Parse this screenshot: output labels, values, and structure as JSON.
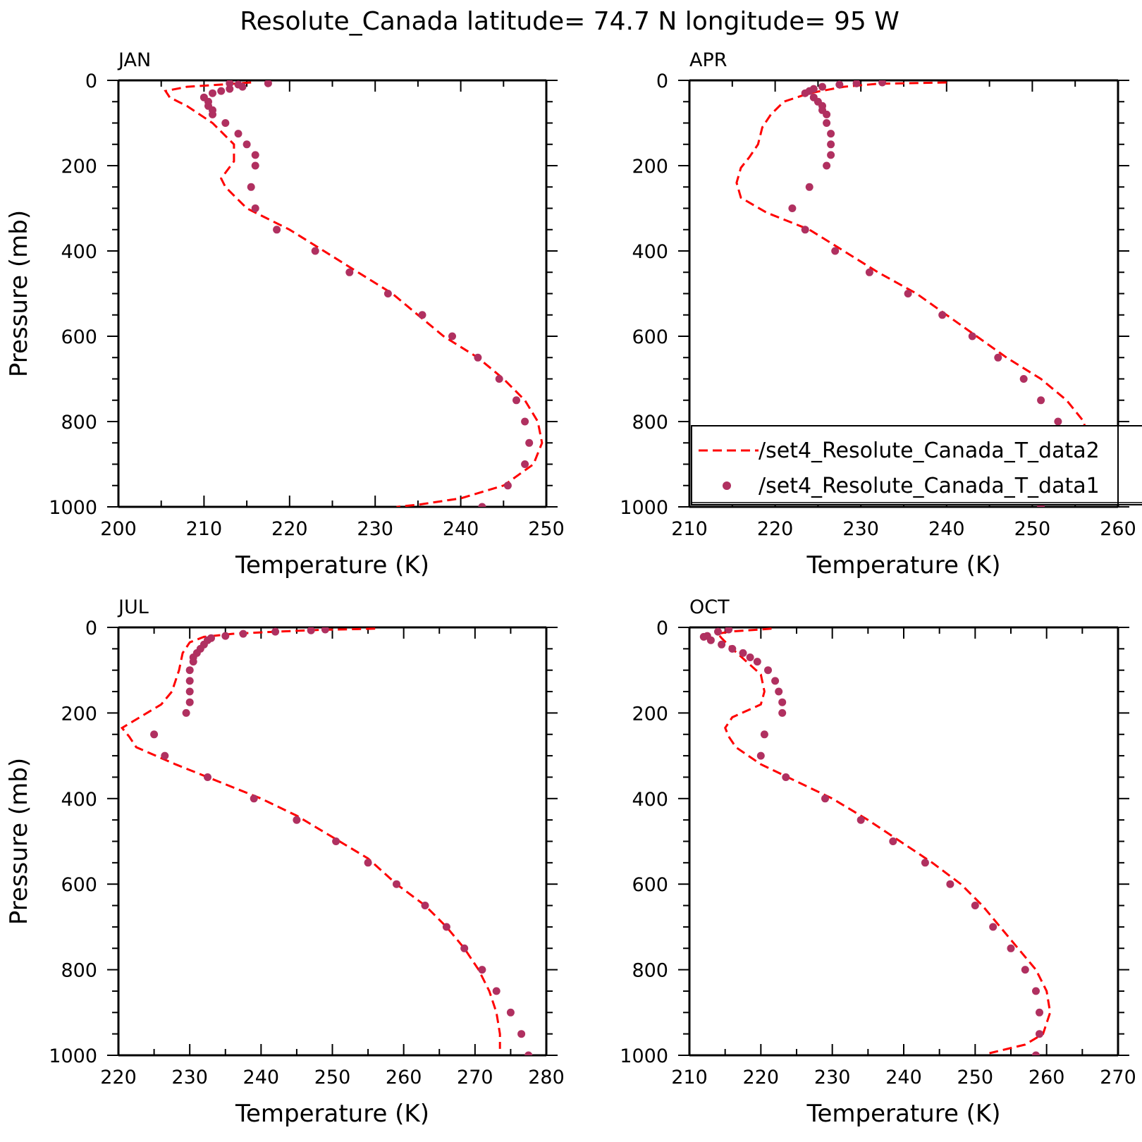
{
  "figure": {
    "title": "Resolute_Canada  latitude= 74.7 N longitude= 95 W"
  },
  "colors": {
    "model_line": "#ff0000",
    "obs_dots": "#b03060",
    "axes": "#000000"
  },
  "legend": {
    "panel": "APR",
    "entries": [
      {
        "label": "/set4_Resolute_Canada_T_data2",
        "style": "dashed-line",
        "color": "#ff0000"
      },
      {
        "label": "/set4_Resolute_Canada_T_data1",
        "style": "dots",
        "color": "#b03060"
      }
    ]
  },
  "chart_data": [
    {
      "type": "line",
      "label": "JAN",
      "xlabel": "Temperature (K)",
      "ylabel": "Pressure (mb)",
      "xlim": [
        200,
        250
      ],
      "ylim": [
        1000,
        0
      ],
      "xticks": [
        200,
        210,
        220,
        230,
        240,
        250
      ],
      "yticks": [
        0,
        200,
        400,
        600,
        800,
        1000
      ],
      "series": [
        {
          "name": "/set4_Resolute_Canada_T_data2",
          "style": "dashed",
          "points": [
            [
              215.5,
              5
            ],
            [
              212,
              10
            ],
            [
              208,
              15
            ],
            [
              205.5,
              25
            ],
            [
              206,
              40
            ],
            [
              208,
              60
            ],
            [
              211,
              100
            ],
            [
              213.5,
              150
            ],
            [
              213.5,
              190
            ],
            [
              212,
              230
            ],
            [
              212.5,
              250
            ],
            [
              213.5,
              270
            ],
            [
              215,
              300
            ],
            [
              220,
              350
            ],
            [
              224,
              400
            ],
            [
              228,
              450
            ],
            [
              232,
              500
            ],
            [
              235,
              550
            ],
            [
              238,
              600
            ],
            [
              242,
              650
            ],
            [
              245,
              700
            ],
            [
              247.5,
              750
            ],
            [
              249,
              800
            ],
            [
              249.5,
              850
            ],
            [
              248.5,
              900
            ],
            [
              245,
              950
            ],
            [
              240,
              980
            ],
            [
              235,
              995
            ],
            [
              232.5,
              1000
            ]
          ]
        },
        {
          "name": "/set4_Resolute_Canada_T_data1",
          "style": "dots",
          "points": [
            [
              217.5,
              7
            ],
            [
              213,
              7
            ],
            [
              214,
              10
            ],
            [
              214.5,
              15
            ],
            [
              213,
              20
            ],
            [
              212,
              25
            ],
            [
              211,
              30
            ],
            [
              210,
              40
            ],
            [
              210.5,
              50
            ],
            [
              210.5,
              60
            ],
            [
              211,
              70
            ],
            [
              211,
              80
            ],
            [
              212.5,
              100
            ],
            [
              214,
              125
            ],
            [
              215,
              150
            ],
            [
              216,
              175
            ],
            [
              216,
              200
            ],
            [
              215.5,
              250
            ],
            [
              216,
              300
            ],
            [
              218.5,
              350
            ],
            [
              223,
              400
            ],
            [
              227,
              450
            ],
            [
              231.5,
              500
            ],
            [
              235.5,
              550
            ],
            [
              239,
              600
            ],
            [
              242,
              650
            ],
            [
              244.5,
              700
            ],
            [
              246.5,
              750
            ],
            [
              247.5,
              800
            ],
            [
              248,
              850
            ],
            [
              247.5,
              900
            ],
            [
              245.5,
              950
            ],
            [
              242.5,
              1000
            ]
          ]
        }
      ]
    },
    {
      "type": "line",
      "label": "APR",
      "xlabel": "Temperature (K)",
      "ylabel": "",
      "xlim": [
        210,
        260
      ],
      "ylim": [
        1000,
        0
      ],
      "xticks": [
        210,
        220,
        230,
        240,
        250,
        260
      ],
      "yticks": [
        0,
        200,
        400,
        600,
        800,
        1000
      ],
      "series": [
        {
          "name": "/set4_Resolute_Canada_T_data2",
          "style": "dashed",
          "points": [
            [
              240,
              5
            ],
            [
              232,
              8
            ],
            [
              228,
              15
            ],
            [
              224,
              30
            ],
            [
              221,
              50
            ],
            [
              219.5,
              80
            ],
            [
              218.5,
              110
            ],
            [
              218,
              150
            ],
            [
              217,
              180
            ],
            [
              216,
              205
            ],
            [
              215.5,
              240
            ],
            [
              216,
              275
            ],
            [
              219,
              310
            ],
            [
              224,
              350
            ],
            [
              228,
              400
            ],
            [
              232,
              450
            ],
            [
              236.5,
              500
            ],
            [
              240,
              550
            ],
            [
              243.5,
              600
            ],
            [
              247,
              650
            ],
            [
              251,
              700
            ],
            [
              254,
              750
            ],
            [
              256,
              800
            ],
            [
              256.5,
              850
            ],
            [
              256,
              900
            ],
            [
              254,
              950
            ],
            [
              251,
              975
            ],
            [
              247,
              990
            ]
          ]
        },
        {
          "name": "/set4_Resolute_Canada_T_data1",
          "style": "dots",
          "points": [
            [
              232.5,
              5
            ],
            [
              229.5,
              7
            ],
            [
              227.5,
              10
            ],
            [
              225.5,
              15
            ],
            [
              224.5,
              20
            ],
            [
              224,
              25
            ],
            [
              223.5,
              30
            ],
            [
              224.5,
              40
            ],
            [
              225,
              50
            ],
            [
              225.5,
              60
            ],
            [
              225.5,
              70
            ],
            [
              226,
              80
            ],
            [
              226,
              100
            ],
            [
              226.5,
              125
            ],
            [
              226.5,
              150
            ],
            [
              226.5,
              175
            ],
            [
              226,
              200
            ],
            [
              224,
              250
            ],
            [
              222,
              300
            ],
            [
              223.5,
              350
            ],
            [
              227,
              400
            ],
            [
              231,
              450
            ],
            [
              235.5,
              500
            ],
            [
              239.5,
              550
            ],
            [
              243,
              600
            ],
            [
              246,
              650
            ],
            [
              249,
              700
            ],
            [
              251,
              750
            ],
            [
              253,
              800
            ],
            [
              254,
              850
            ],
            [
              254,
              900
            ],
            [
              252.5,
              950
            ],
            [
              251,
              1000
            ]
          ]
        }
      ]
    },
    {
      "type": "line",
      "label": "JUL",
      "xlabel": "Temperature (K)",
      "ylabel": "Pressure (mb)",
      "xlim": [
        220,
        280
      ],
      "ylim": [
        1000,
        0
      ],
      "xticks": [
        220,
        230,
        240,
        250,
        260,
        270,
        280
      ],
      "yticks": [
        0,
        200,
        400,
        600,
        800,
        1000
      ],
      "series": [
        {
          "name": "/set4_Resolute_Canada_T_data2",
          "style": "dashed",
          "points": [
            [
              256,
              3
            ],
            [
              248,
              6
            ],
            [
              242,
              10
            ],
            [
              236,
              15
            ],
            [
              232,
              22
            ],
            [
              230,
              35
            ],
            [
              229,
              60
            ],
            [
              228.5,
              100
            ],
            [
              227.5,
              150
            ],
            [
              226,
              180
            ],
            [
              223,
              210
            ],
            [
              220.5,
              235
            ],
            [
              221.5,
              255
            ],
            [
              222.5,
              280
            ],
            [
              228,
              320
            ],
            [
              234,
              360
            ],
            [
              240,
              400
            ],
            [
              245,
              440
            ],
            [
              250,
              490
            ],
            [
              255,
              540
            ],
            [
              259,
              600
            ],
            [
              263,
              650
            ],
            [
              266,
              700
            ],
            [
              268.5,
              750
            ],
            [
              270.5,
              800
            ],
            [
              272,
              850
            ],
            [
              273,
              900
            ],
            [
              273.5,
              950
            ],
            [
              273.5,
              985
            ]
          ]
        },
        {
          "name": "/set4_Resolute_Canada_T_data1",
          "style": "dots",
          "points": [
            [
              249,
              5
            ],
            [
              247,
              7
            ],
            [
              242,
              10
            ],
            [
              237.5,
              15
            ],
            [
              235,
              20
            ],
            [
              233,
              25
            ],
            [
              232.5,
              30
            ],
            [
              232,
              40
            ],
            [
              231.5,
              50
            ],
            [
              231,
              60
            ],
            [
              230.5,
              70
            ],
            [
              230.5,
              80
            ],
            [
              230,
              100
            ],
            [
              230,
              125
            ],
            [
              230,
              150
            ],
            [
              230,
              175
            ],
            [
              229.5,
              200
            ],
            [
              225,
              250
            ],
            [
              226.5,
              300
            ],
            [
              232.5,
              350
            ],
            [
              239,
              400
            ],
            [
              245,
              450
            ],
            [
              250.5,
              500
            ],
            [
              255,
              550
            ],
            [
              259,
              600
            ],
            [
              263,
              650
            ],
            [
              266,
              700
            ],
            [
              268.5,
              750
            ],
            [
              271,
              800
            ],
            [
              273,
              850
            ],
            [
              275,
              900
            ],
            [
              276.5,
              950
            ],
            [
              277.5,
              1000
            ]
          ]
        }
      ]
    },
    {
      "type": "line",
      "label": "OCT",
      "xlabel": "Temperature (K)",
      "ylabel": "",
      "xlim": [
        210,
        270
      ],
      "ylim": [
        1000,
        0
      ],
      "xticks": [
        210,
        220,
        230,
        240,
        250,
        260,
        270
      ],
      "yticks": [
        0,
        200,
        400,
        600,
        800,
        1000
      ],
      "series": [
        {
          "name": "/set4_Resolute_Canada_T_data2",
          "style": "dashed",
          "points": [
            [
              221.5,
              3
            ],
            [
              219,
              6
            ],
            [
              215.5,
              10
            ],
            [
              214,
              15
            ],
            [
              214.5,
              25
            ],
            [
              216,
              50
            ],
            [
              218,
              80
            ],
            [
              220,
              110
            ],
            [
              220.5,
              150
            ],
            [
              220,
              180
            ],
            [
              218,
              195
            ],
            [
              216,
              210
            ],
            [
              215,
              235
            ],
            [
              215.5,
              255
            ],
            [
              216.5,
              280
            ],
            [
              220,
              320
            ],
            [
              225,
              360
            ],
            [
              230,
              400
            ],
            [
              235,
              450
            ],
            [
              239.5,
              500
            ],
            [
              244,
              550
            ],
            [
              248,
              600
            ],
            [
              251,
              650
            ],
            [
              253.5,
              700
            ],
            [
              256,
              750
            ],
            [
              258.5,
              800
            ],
            [
              260,
              850
            ],
            [
              260.5,
              900
            ],
            [
              259.5,
              950
            ],
            [
              257,
              975
            ],
            [
              252,
              995
            ]
          ]
        },
        {
          "name": "/set4_Resolute_Canada_T_data1",
          "style": "dots",
          "points": [
            [
              215.5,
              5
            ],
            [
              214,
              10
            ],
            [
              212.5,
              20
            ],
            [
              212,
              22
            ],
            [
              213,
              30
            ],
            [
              214.5,
              40
            ],
            [
              216,
              50
            ],
            [
              217.5,
              60
            ],
            [
              218.5,
              70
            ],
            [
              219.5,
              80
            ],
            [
              221,
              100
            ],
            [
              222,
              125
            ],
            [
              222.5,
              150
            ],
            [
              223,
              175
            ],
            [
              223,
              200
            ],
            [
              220.5,
              250
            ],
            [
              220,
              300
            ],
            [
              223.5,
              350
            ],
            [
              229,
              400
            ],
            [
              234,
              450
            ],
            [
              238.5,
              500
            ],
            [
              243,
              550
            ],
            [
              246.5,
              600
            ],
            [
              250,
              650
            ],
            [
              252.5,
              700
            ],
            [
              255,
              750
            ],
            [
              257,
              800
            ],
            [
              258.5,
              850
            ],
            [
              259,
              900
            ],
            [
              259,
              950
            ],
            [
              258.5,
              1000
            ]
          ]
        }
      ]
    }
  ]
}
